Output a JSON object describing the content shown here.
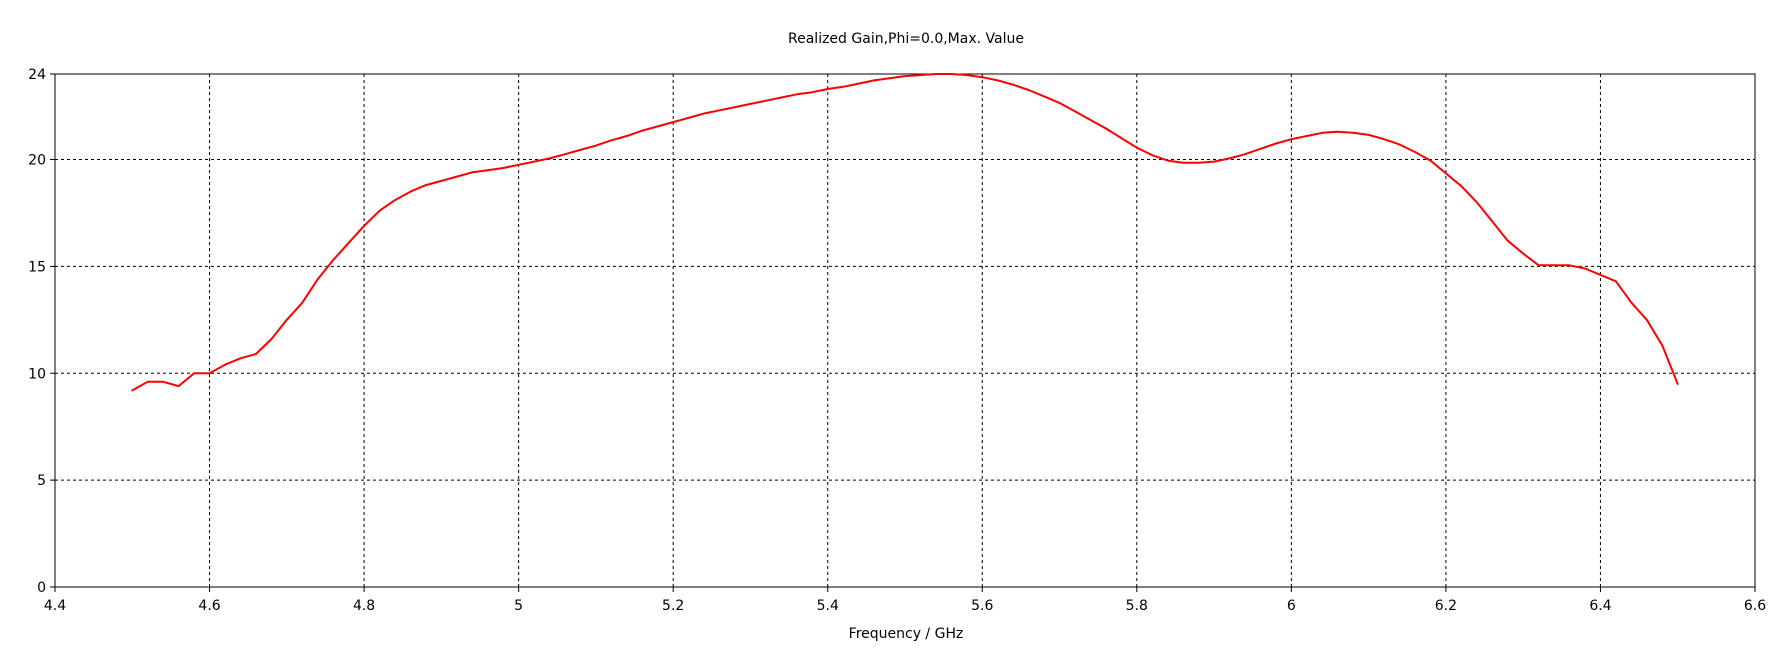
{
  "chart_data": {
    "type": "line",
    "title": "Realized Gain,Phi=0.0,Max. Value",
    "xlabel": "Frequency / GHz",
    "ylabel": "",
    "xlim": [
      4.4,
      6.6
    ],
    "ylim": [
      0,
      24
    ],
    "x_ticks": [
      4.4,
      4.6,
      4.8,
      5,
      5.2,
      5.4,
      5.6,
      5.8,
      6,
      6.2,
      6.4,
      6.6
    ],
    "x_tick_labels": [
      "4.4",
      "4.6",
      "4.8",
      "5",
      "5.2",
      "5.4",
      "5.6",
      "5.8",
      "6",
      "6.2",
      "6.4",
      "6.6"
    ],
    "y_ticks": [
      0,
      5,
      10,
      15,
      20,
      24
    ],
    "y_tick_labels": [
      "0",
      "5",
      "10",
      "15",
      "20",
      "24"
    ],
    "grid": true,
    "series": [
      {
        "name": "",
        "color": "#ff0000",
        "x": [
          4.5,
          4.52,
          4.54,
          4.56,
          4.58,
          4.6,
          4.62,
          4.64,
          4.66,
          4.68,
          4.7,
          4.72,
          4.74,
          4.76,
          4.78,
          4.8,
          4.82,
          4.84,
          4.86,
          4.88,
          4.9,
          4.92,
          4.94,
          4.96,
          4.98,
          5.0,
          5.02,
          5.04,
          5.06,
          5.08,
          5.1,
          5.12,
          5.14,
          5.16,
          5.18,
          5.2,
          5.22,
          5.24,
          5.26,
          5.28,
          5.3,
          5.32,
          5.34,
          5.36,
          5.38,
          5.4,
          5.42,
          5.44,
          5.46,
          5.48,
          5.5,
          5.52,
          5.54,
          5.56,
          5.58,
          5.6,
          5.62,
          5.64,
          5.66,
          5.68,
          5.7,
          5.72,
          5.74,
          5.76,
          5.78,
          5.8,
          5.82,
          5.84,
          5.86,
          5.88,
          5.9,
          5.92,
          5.94,
          5.96,
          5.98,
          6.0,
          6.02,
          6.04,
          6.06,
          6.08,
          6.1,
          6.12,
          6.14,
          6.16,
          6.18,
          6.2,
          6.22,
          6.24,
          6.26,
          6.28,
          6.3,
          6.32,
          6.34,
          6.36,
          6.38,
          6.4,
          6.42,
          6.44,
          6.46,
          6.48,
          6.5
        ],
        "y": [
          9.2,
          9.6,
          9.6,
          9.4,
          10.0,
          10.0,
          10.4,
          10.7,
          10.9,
          11.6,
          12.5,
          13.3,
          14.4,
          15.3,
          16.1,
          16.9,
          17.6,
          18.1,
          18.5,
          18.8,
          19.0,
          19.2,
          19.4,
          19.5,
          19.6,
          19.75,
          19.9,
          20.05,
          20.25,
          20.45,
          20.65,
          20.9,
          21.1,
          21.35,
          21.55,
          21.75,
          21.95,
          22.15,
          22.3,
          22.45,
          22.6,
          22.75,
          22.9,
          23.05,
          23.15,
          23.3,
          23.4,
          23.55,
          23.7,
          23.8,
          23.9,
          23.95,
          24.0,
          24.0,
          23.95,
          23.85,
          23.7,
          23.5,
          23.25,
          22.95,
          22.65,
          22.25,
          21.85,
          21.45,
          21.0,
          20.55,
          20.2,
          19.95,
          19.85,
          19.85,
          19.9,
          20.05,
          20.25,
          20.5,
          20.75,
          20.95,
          21.1,
          21.25,
          21.3,
          21.25,
          21.15,
          20.95,
          20.7,
          20.35,
          19.95,
          19.35,
          18.75,
          18.0,
          17.1,
          16.2,
          15.6,
          15.05,
          15.05,
          15.05,
          14.9,
          14.6,
          14.3,
          13.3,
          12.5,
          11.3,
          9.5
        ]
      }
    ]
  }
}
